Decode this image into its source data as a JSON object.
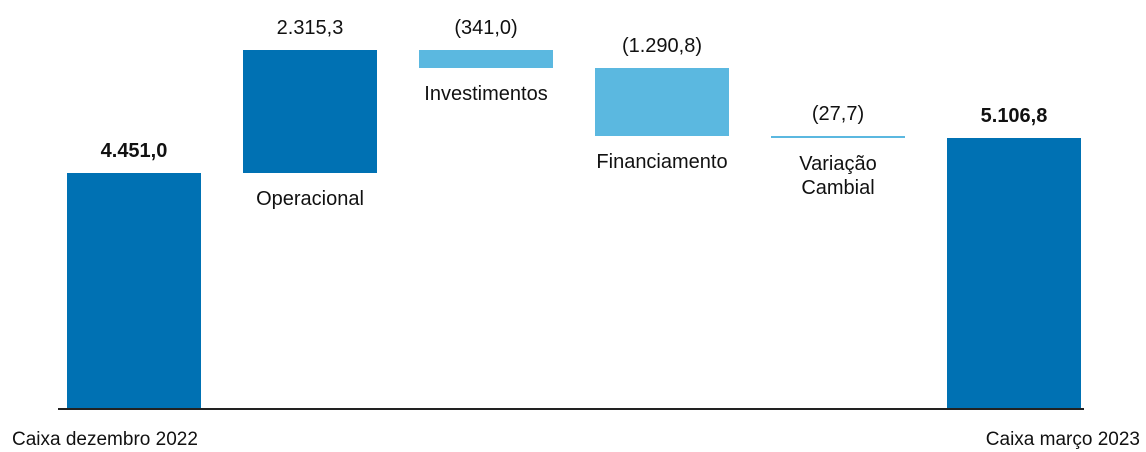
{
  "chart_data": {
    "type": "waterfall",
    "categories": [
      "Caixa dezembro 2022",
      "Operacional",
      "Investimentos",
      "Financiamento",
      "Variação Cambial",
      "Caixa março 2023"
    ],
    "values": [
      4451.0,
      2315.3,
      -341.0,
      -1290.8,
      -27.7,
      5106.8
    ],
    "value_labels": [
      "4.451,0",
      "2.315,3",
      "(341,0)",
      "(1.290,8)",
      "(27,7)",
      "5.106,8"
    ],
    "colors": [
      "#0071b3",
      "#0071b3",
      "#5bb8e0",
      "#5bb8e0",
      "#5bb8e0",
      "#0071b3"
    ]
  }
}
